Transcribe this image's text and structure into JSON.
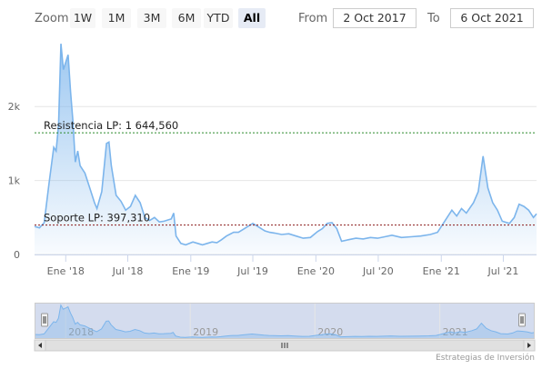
{
  "toolbar": {
    "zoom_label": "Zoom",
    "zoom_buttons": [
      {
        "label": "1W",
        "active": false
      },
      {
        "label": "1M",
        "active": false
      },
      {
        "label": "3M",
        "active": false
      },
      {
        "label": "6M",
        "active": false
      },
      {
        "label": "YTD",
        "active": false
      },
      {
        "label": "All",
        "active": true
      }
    ],
    "from_label": "From",
    "from_value": "2 Oct 2017",
    "to_label": "To",
    "to_value": "6 Oct 2021"
  },
  "credit": "Estrategias de Inversión",
  "colors": {
    "series_line": "#7cb5ec",
    "resistance_line": "#2b8a2b",
    "support_line": "#8b1a1a",
    "navigator_mask": "#ccd6eb"
  },
  "chart_data": {
    "type": "area",
    "title": "",
    "xlabel": "",
    "ylabel": "",
    "x_range": [
      "2017-10-02",
      "2021-10-06"
    ],
    "ylim": [
      0,
      2900
    ],
    "y_ticks": [
      {
        "value": 0,
        "label": "0"
      },
      {
        "value": 1000,
        "label": "1k"
      },
      {
        "value": 2000,
        "label": "2k"
      }
    ],
    "x_ticks": [
      {
        "date": "2018-01-01",
        "label": "Ene '18"
      },
      {
        "date": "2018-07-01",
        "label": "Jul '18"
      },
      {
        "date": "2019-01-01",
        "label": "Ene '19"
      },
      {
        "date": "2019-07-01",
        "label": "Jul '19"
      },
      {
        "date": "2020-01-01",
        "label": "Ene '20"
      },
      {
        "date": "2020-07-01",
        "label": "Jul '20"
      },
      {
        "date": "2021-01-01",
        "label": "Ene '21"
      },
      {
        "date": "2021-07-01",
        "label": "Jul '21"
      }
    ],
    "grid": true,
    "legend": "none",
    "plot_lines": [
      {
        "label": "Resistencia LP: 1 644,560",
        "value": 1644.56
      },
      {
        "label": "Soporte LP: 397,310",
        "value": 397.31
      }
    ],
    "navigator_years": [
      "2018",
      "2019",
      "2020",
      "2021"
    ],
    "series": [
      {
        "points": [
          [
            "2017-10-02",
            380
          ],
          [
            "2017-10-16",
            360
          ],
          [
            "2017-10-30",
            430
          ],
          [
            "2017-11-13",
            950
          ],
          [
            "2017-11-27",
            1450
          ],
          [
            "2017-12-04",
            1400
          ],
          [
            "2017-12-11",
            1750
          ],
          [
            "2017-12-18",
            2850
          ],
          [
            "2017-12-25",
            2500
          ],
          [
            "2018-01-01",
            2600
          ],
          [
            "2018-01-08",
            2700
          ],
          [
            "2018-01-15",
            2200
          ],
          [
            "2018-01-22",
            1800
          ],
          [
            "2018-01-29",
            1250
          ],
          [
            "2018-02-05",
            1400
          ],
          [
            "2018-02-12",
            1200
          ],
          [
            "2018-02-26",
            1100
          ],
          [
            "2018-03-12",
            900
          ],
          [
            "2018-03-26",
            700
          ],
          [
            "2018-04-02",
            620
          ],
          [
            "2018-04-16",
            850
          ],
          [
            "2018-04-30",
            1500
          ],
          [
            "2018-05-07",
            1520
          ],
          [
            "2018-05-14",
            1200
          ],
          [
            "2018-05-28",
            800
          ],
          [
            "2018-06-11",
            720
          ],
          [
            "2018-06-25",
            600
          ],
          [
            "2018-07-09",
            650
          ],
          [
            "2018-07-23",
            800
          ],
          [
            "2018-08-06",
            700
          ],
          [
            "2018-08-20",
            500
          ],
          [
            "2018-09-03",
            460
          ],
          [
            "2018-09-17",
            500
          ],
          [
            "2018-10-01",
            440
          ],
          [
            "2018-10-15",
            450
          ],
          [
            "2018-11-05",
            480
          ],
          [
            "2018-11-12",
            560
          ],
          [
            "2018-11-19",
            250
          ],
          [
            "2018-12-03",
            150
          ],
          [
            "2018-12-17",
            130
          ],
          [
            "2019-01-07",
            170
          ],
          [
            "2019-01-21",
            150
          ],
          [
            "2019-02-04",
            130
          ],
          [
            "2019-02-18",
            150
          ],
          [
            "2019-03-04",
            170
          ],
          [
            "2019-03-18",
            160
          ],
          [
            "2019-04-01",
            200
          ],
          [
            "2019-04-15",
            250
          ],
          [
            "2019-05-06",
            300
          ],
          [
            "2019-05-20",
            300
          ],
          [
            "2019-06-03",
            340
          ],
          [
            "2019-06-17",
            380
          ],
          [
            "2019-07-01",
            420
          ],
          [
            "2019-07-15",
            380
          ],
          [
            "2019-08-05",
            320
          ],
          [
            "2019-08-19",
            300
          ],
          [
            "2019-09-02",
            290
          ],
          [
            "2019-09-23",
            270
          ],
          [
            "2019-10-14",
            280
          ],
          [
            "2019-11-04",
            250
          ],
          [
            "2019-11-25",
            220
          ],
          [
            "2019-12-16",
            230
          ],
          [
            "2020-01-06",
            310
          ],
          [
            "2020-01-20",
            350
          ],
          [
            "2020-02-03",
            420
          ],
          [
            "2020-02-17",
            430
          ],
          [
            "2020-03-02",
            350
          ],
          [
            "2020-03-16",
            180
          ],
          [
            "2020-04-06",
            200
          ],
          [
            "2020-04-27",
            220
          ],
          [
            "2020-05-18",
            210
          ],
          [
            "2020-06-08",
            230
          ],
          [
            "2020-06-29",
            220
          ],
          [
            "2020-07-20",
            240
          ],
          [
            "2020-08-10",
            260
          ],
          [
            "2020-09-07",
            230
          ],
          [
            "2020-10-05",
            240
          ],
          [
            "2020-11-02",
            250
          ],
          [
            "2020-11-30",
            270
          ],
          [
            "2020-12-21",
            300
          ],
          [
            "2021-01-11",
            450
          ],
          [
            "2021-02-01",
            600
          ],
          [
            "2021-02-15",
            520
          ],
          [
            "2021-03-01",
            620
          ],
          [
            "2021-03-15",
            560
          ],
          [
            "2021-04-05",
            700
          ],
          [
            "2021-04-19",
            850
          ],
          [
            "2021-05-03",
            1330
          ],
          [
            "2021-05-17",
            900
          ],
          [
            "2021-05-31",
            700
          ],
          [
            "2021-06-14",
            600
          ],
          [
            "2021-06-28",
            450
          ],
          [
            "2021-07-19",
            420
          ],
          [
            "2021-08-02",
            500
          ],
          [
            "2021-08-16",
            680
          ],
          [
            "2021-08-30",
            650
          ],
          [
            "2021-09-13",
            600
          ],
          [
            "2021-09-27",
            500
          ],
          [
            "2021-10-06",
            550
          ]
        ]
      }
    ]
  }
}
